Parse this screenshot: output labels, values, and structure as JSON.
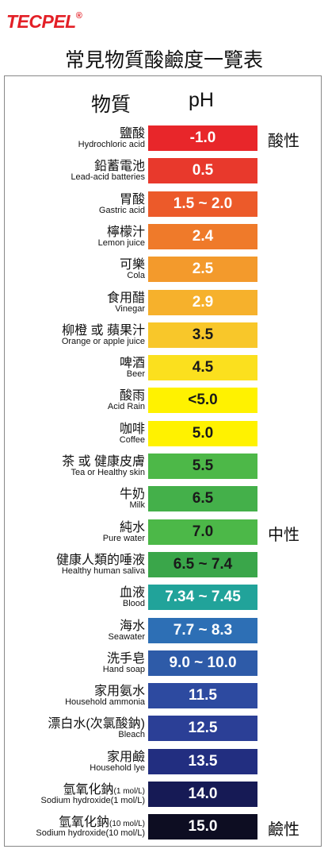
{
  "logo": {
    "name": "TECPEL",
    "mark": "®"
  },
  "title": "常見物質酸鹼度一覽表",
  "header": {
    "substance": "物質",
    "ph": "pH"
  },
  "rows": [
    {
      "zh": "鹽酸",
      "en": "Hydrochloric acid",
      "ph": "-1.0",
      "color": "#e8262a",
      "text_color": "#ffffff",
      "side": "酸性"
    },
    {
      "zh": "鉛蓄電池",
      "en": "Lead-acid batteries",
      "ph": "0.5",
      "color": "#e8392c",
      "text_color": "#ffffff"
    },
    {
      "zh": "胃酸",
      "en": "Gastric acid",
      "ph": "1.5 ~ 2.0",
      "color": "#ec5a2a",
      "text_color": "#ffffff"
    },
    {
      "zh": "檸檬汁",
      "en": "Lemon juice",
      "ph": "2.4",
      "color": "#ef7a2a",
      "text_color": "#ffffff"
    },
    {
      "zh": "可樂",
      "en": "Cola",
      "ph": "2.5",
      "color": "#f39a2c",
      "text_color": "#ffffff"
    },
    {
      "zh": "食用醋",
      "en": "Vinegar",
      "ph": "2.9",
      "color": "#f6b12c",
      "text_color": "#ffffff"
    },
    {
      "zh": "柳橙 或 蘋果汁",
      "en": "Orange or apple juice",
      "ph": "3.5",
      "color": "#f8c72a",
      "text_color": "#1a1a1a"
    },
    {
      "zh": "啤酒",
      "en": "Beer",
      "ph": "4.5",
      "color": "#fbe01e",
      "text_color": "#1a1a1a"
    },
    {
      "zh": "酸雨",
      "en": "Acid Rain",
      "ph": "<5.0",
      "color": "#fff200",
      "text_color": "#1a1a1a"
    },
    {
      "zh": "咖啡",
      "en": "Coffee",
      "ph": "5.0",
      "color": "#fff200",
      "text_color": "#1a1a1a"
    },
    {
      "zh": "茶 或 健康皮膚",
      "en": "Tea or Healthy skin",
      "ph": "5.5",
      "color": "#4db848",
      "text_color": "#1a1a1a"
    },
    {
      "zh": "牛奶",
      "en": "Milk",
      "ph": "6.5",
      "color": "#44b04a",
      "text_color": "#1a1a1a"
    },
    {
      "zh": "純水",
      "en": "Pure water",
      "ph": "7.0",
      "color": "#4cb848",
      "text_color": "#1a1a1a",
      "side": "中性"
    },
    {
      "zh": "健康人類的唾液",
      "en": "Healthy human saliva",
      "ph": "6.5 ~ 7.4",
      "color": "#3aa64a",
      "text_color": "#1a1a1a"
    },
    {
      "zh": "血液",
      "en": "Blood",
      "ph": "7.34 ~ 7.45",
      "color": "#21a39a",
      "text_color": "#ffffff"
    },
    {
      "zh": "海水",
      "en": "Seawater",
      "ph": "7.7 ~ 8.3",
      "color": "#2d6fb5",
      "text_color": "#ffffff"
    },
    {
      "zh": "洗手皂",
      "en": "Hand soap",
      "ph": "9.0 ~ 10.0",
      "color": "#2e5ba8",
      "text_color": "#ffffff"
    },
    {
      "zh": "家用氨水",
      "en": "Household ammonia",
      "ph": "11.5",
      "color": "#2d4aa0",
      "text_color": "#ffffff"
    },
    {
      "zh": "漂白水(次氯酸鈉)",
      "en": "Bleach",
      "ph": "12.5",
      "color": "#2b3f96",
      "text_color": "#ffffff"
    },
    {
      "zh": "家用鹼",
      "en": "Household lye",
      "ph": "13.5",
      "color": "#222e80",
      "text_color": "#ffffff"
    },
    {
      "zh": "氫氧化鈉",
      "note": "(1 mol/L)",
      "en": "Sodium hydroxide(1 mol/L)",
      "ph": "14.0",
      "color": "#161a55",
      "text_color": "#ffffff"
    },
    {
      "zh": "氫氧化鈉",
      "note": "(10 mol/L)",
      "en": "Sodium hydroxide(10 mol/L)",
      "ph": "15.0",
      "color": "#0d0d22",
      "text_color": "#ffffff",
      "side": "鹼性"
    }
  ]
}
